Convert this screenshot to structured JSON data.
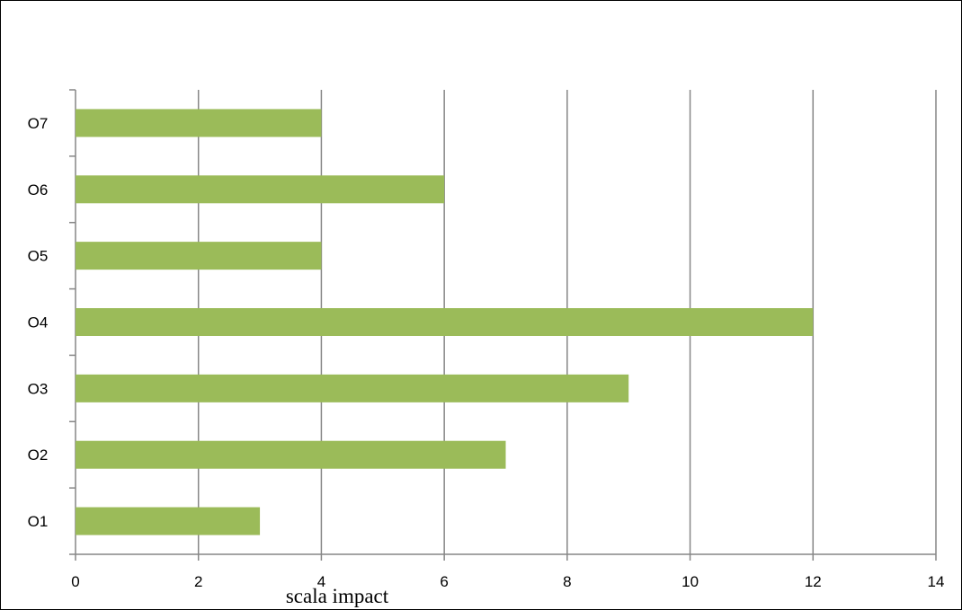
{
  "chart_data": {
    "type": "bar",
    "orientation": "horizontal",
    "categories": [
      "O1",
      "O2",
      "O3",
      "O4",
      "O5",
      "O6",
      "O7"
    ],
    "values": [
      3,
      7,
      9,
      12,
      4,
      6,
      4
    ],
    "title": "",
    "xlabel": "scala impact",
    "ylabel": "",
    "xlim": [
      0,
      14
    ],
    "xticks": [
      "0",
      "2",
      "4",
      "6",
      "8",
      "10",
      "12",
      "14"
    ],
    "grid": "vertical",
    "legend": "none",
    "colors": {
      "bar": "#9BBB59",
      "grid": "#868686",
      "axis": "#868686",
      "border": "#000000"
    }
  }
}
